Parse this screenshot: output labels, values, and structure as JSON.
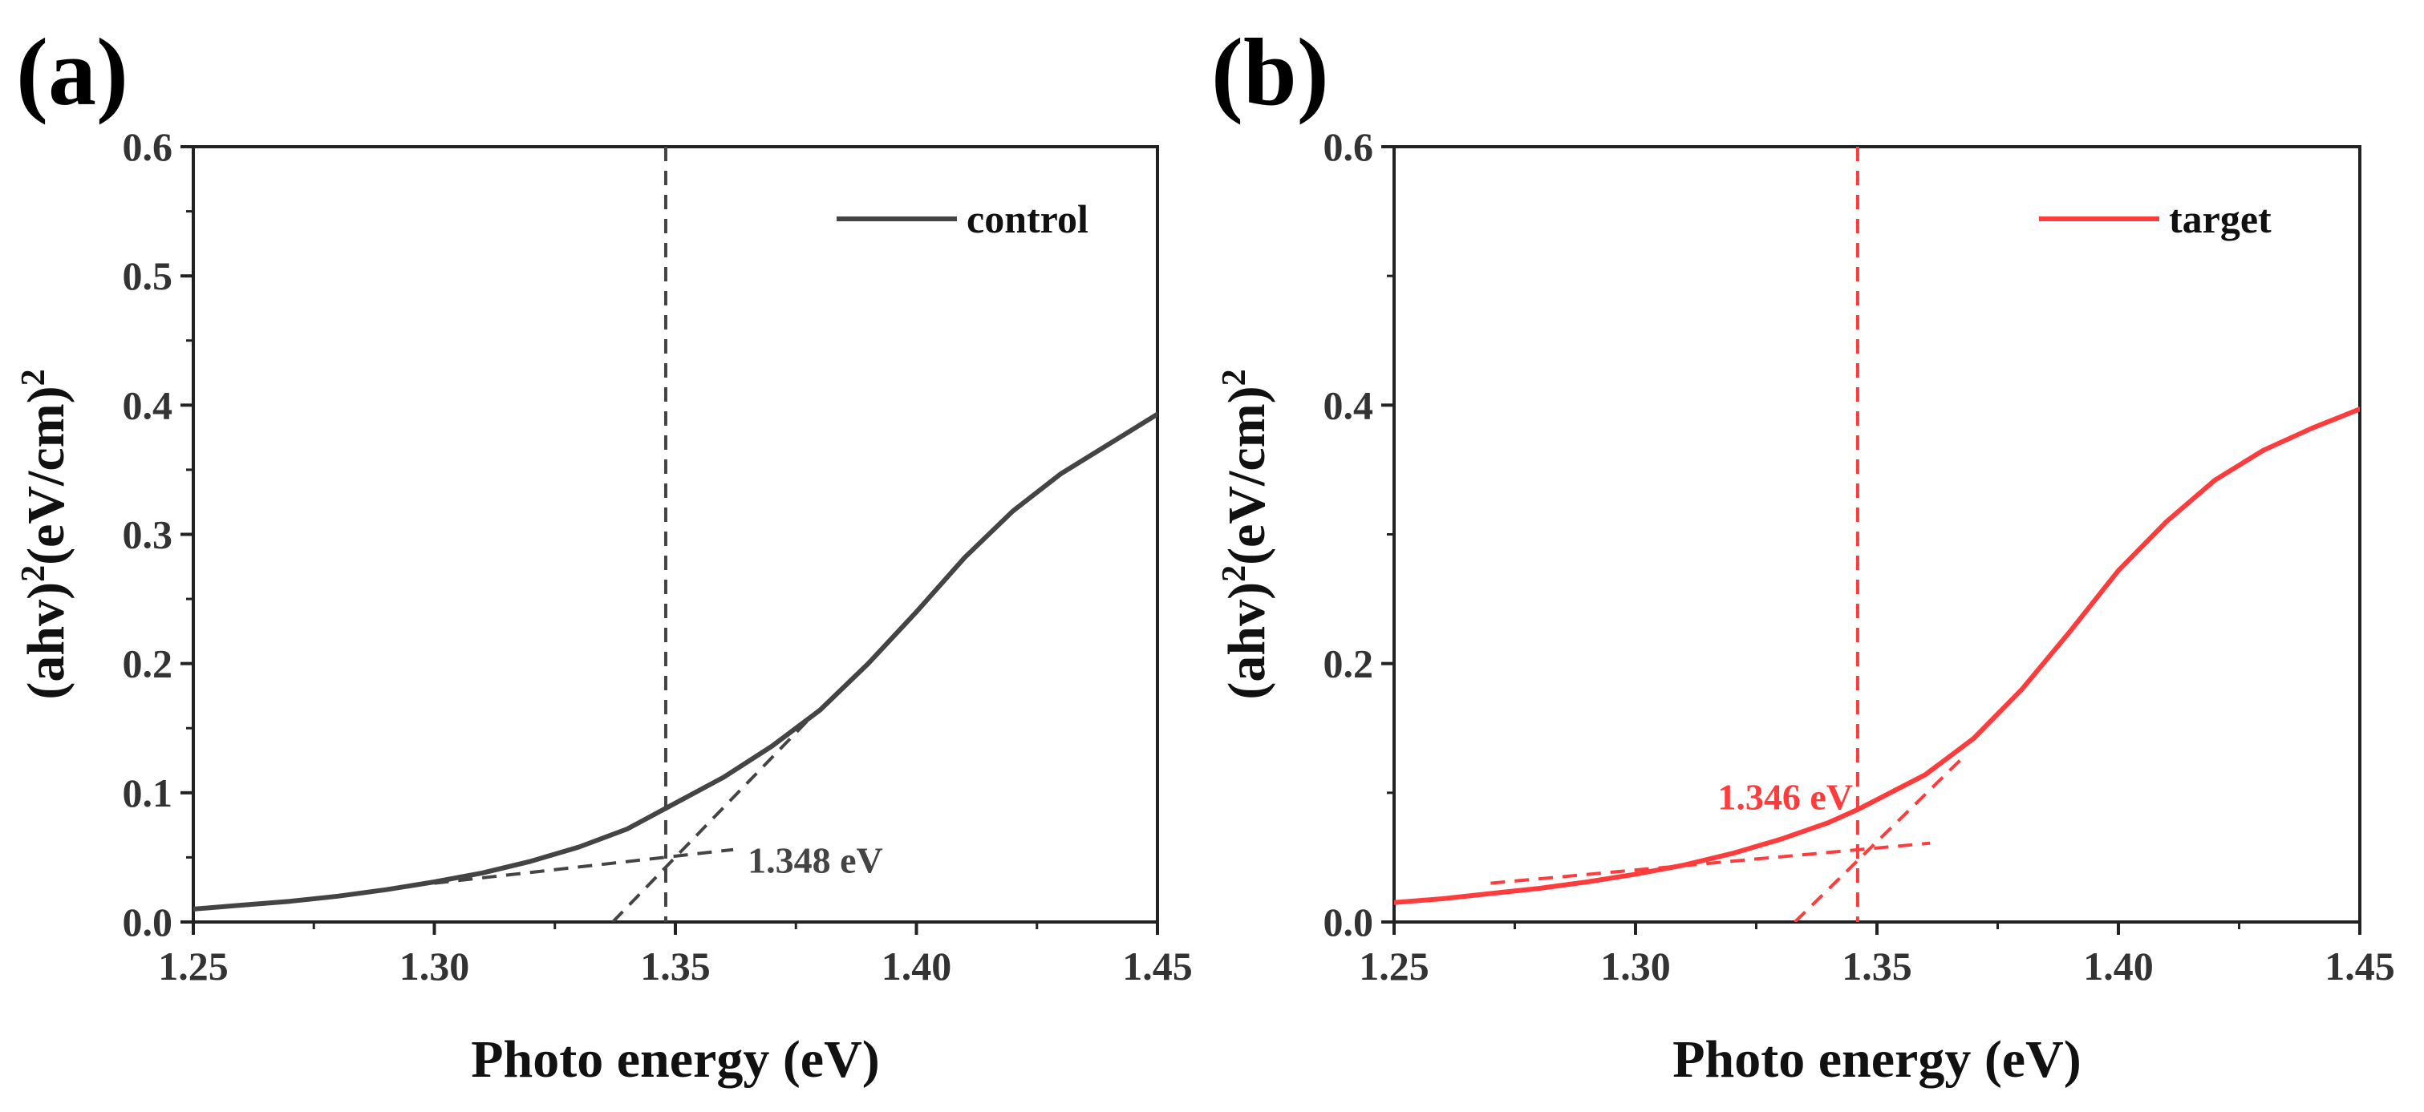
{
  "chart_data": [
    {
      "type": "line",
      "panel_label": "(a)",
      "xlabel": "Photo energy (eV)",
      "ylabel_parts": [
        "(ahv)",
        "2",
        "(eV/cm)",
        "2"
      ],
      "xlim": [
        1.25,
        1.45
      ],
      "ylim": [
        0.0,
        0.6
      ],
      "xticks": [
        1.25,
        1.3,
        1.35,
        1.4,
        1.45
      ],
      "xtick_labels": [
        "1.25",
        "1.30",
        "1.35",
        "1.40",
        "1.45"
      ],
      "yticks": [
        0.0,
        0.1,
        0.2,
        0.3,
        0.4,
        0.5,
        0.6
      ],
      "ytick_labels": [
        "0.0",
        "0.1",
        "0.2",
        "0.3",
        "0.4",
        "0.5",
        "0.6"
      ],
      "legend_position": "top-right",
      "grid": false,
      "color": "#444444",
      "series": [
        {
          "name": "control",
          "x": [
            1.25,
            1.26,
            1.27,
            1.28,
            1.29,
            1.3,
            1.31,
            1.32,
            1.33,
            1.34,
            1.348,
            1.36,
            1.37,
            1.38,
            1.39,
            1.4,
            1.41,
            1.42,
            1.43,
            1.44,
            1.45
          ],
          "y": [
            0.01,
            0.013,
            0.016,
            0.02,
            0.025,
            0.031,
            0.038,
            0.047,
            0.058,
            0.072,
            0.088,
            0.112,
            0.136,
            0.164,
            0.2,
            0.24,
            0.282,
            0.318,
            0.347,
            0.37,
            0.393
          ]
        }
      ],
      "fit_lines": [
        {
          "x": [
            1.3,
            1.362
          ],
          "y": [
            0.03,
            0.056
          ]
        },
        {
          "x": [
            1.337,
            1.378
          ],
          "y": [
            0.0,
            0.158
          ]
        }
      ],
      "vline_x": 1.348,
      "annotation": {
        "text": "1.348 eV",
        "x": 1.365,
        "y": 0.048
      }
    },
    {
      "type": "line",
      "panel_label": "(b)",
      "xlabel": "Photo energy (eV)",
      "ylabel_parts": [
        "(ahv)",
        "2",
        "(eV/cm)",
        "2"
      ],
      "xlim": [
        1.25,
        1.45
      ],
      "ylim": [
        0.0,
        0.6
      ],
      "xticks": [
        1.25,
        1.3,
        1.35,
        1.4,
        1.45
      ],
      "xtick_labels": [
        "1.25",
        "1.30",
        "1.35",
        "1.40",
        "1.45"
      ],
      "yticks": [
        0.0,
        0.2,
        0.4,
        0.6
      ],
      "ytick_labels": [
        "0.0",
        "0.2",
        "0.4",
        "0.6"
      ],
      "legend_position": "top-right",
      "grid": false,
      "color": "#FF3B3B",
      "series": [
        {
          "name": "target",
          "x": [
            1.25,
            1.26,
            1.27,
            1.28,
            1.29,
            1.3,
            1.31,
            1.32,
            1.33,
            1.34,
            1.346,
            1.36,
            1.37,
            1.38,
            1.39,
            1.4,
            1.41,
            1.42,
            1.43,
            1.44,
            1.45
          ],
          "y": [
            0.015,
            0.018,
            0.022,
            0.026,
            0.031,
            0.037,
            0.044,
            0.053,
            0.064,
            0.077,
            0.087,
            0.114,
            0.142,
            0.18,
            0.225,
            0.272,
            0.31,
            0.342,
            0.365,
            0.382,
            0.397
          ]
        }
      ],
      "fit_lines": [
        {
          "x": [
            1.27,
            1.361
          ],
          "y": [
            0.03,
            0.061
          ]
        },
        {
          "x": [
            1.333,
            1.368
          ],
          "y": [
            0.0,
            0.128
          ]
        }
      ],
      "vline_x": 1.346,
      "annotation": {
        "text": "1.346 eV",
        "x": 1.317,
        "y": 0.097
      }
    }
  ]
}
